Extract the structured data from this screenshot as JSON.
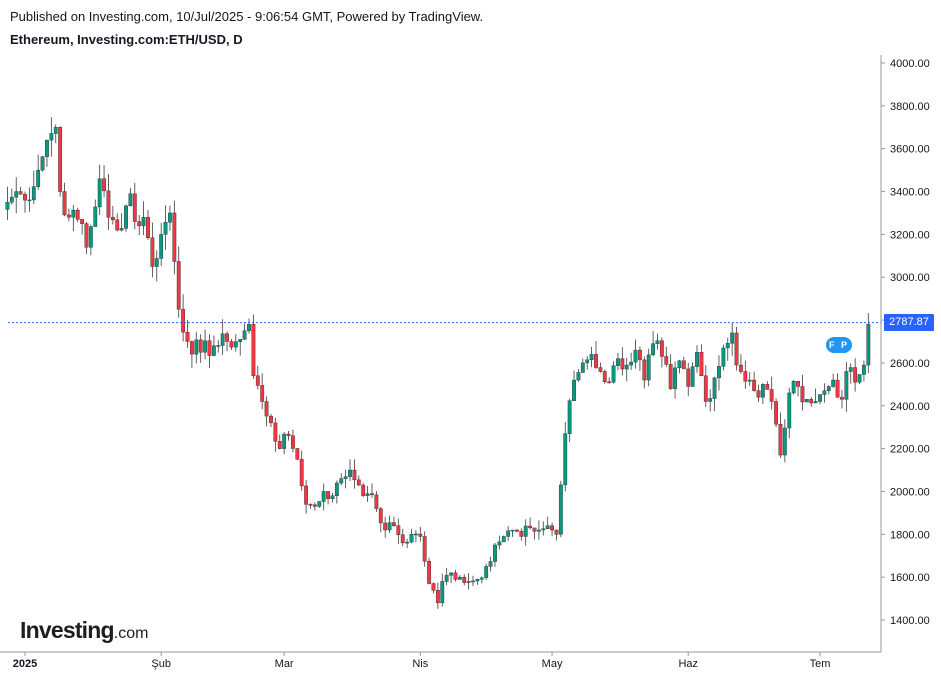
{
  "header": {
    "published": "Published on Investing.com, 10/Jul/2025 - 9:06:54 GMT, Powered by TradingView.",
    "symbol": "Ethereum, Investing.com:ETH/USD, D"
  },
  "logo": {
    "main": "Investing",
    "suffix": ".com"
  },
  "markers": {
    "text": "F P"
  },
  "colors": {
    "up": "#089981",
    "down": "#f23645",
    "wick": "#3a3a3a",
    "grid_line": "#2962ff",
    "price_tag": "#2962ff"
  },
  "chart_data": {
    "type": "candlestick",
    "title": "Ethereum, Investing.com:ETH/USD, D",
    "ylim": [
      1250,
      4050
    ],
    "y_ticks": [
      "4000.00",
      "3800.00",
      "3600.00",
      "3400.00",
      "3200.00",
      "3000.00",
      "2800.00",
      "2600.00",
      "2400.00",
      "2200.00",
      "2000.00",
      "1800.00",
      "1600.00",
      "1400.00"
    ],
    "x_tick_labels": [
      {
        "label": "2025",
        "day": 0
      },
      {
        "label": "Şub",
        "day": 31
      },
      {
        "label": "Mar",
        "day": 59
      },
      {
        "label": "Nis",
        "day": 90
      },
      {
        "label": "May",
        "day": 120
      },
      {
        "label": "Haz",
        "day": 151
      },
      {
        "label": "Tem",
        "day": 181
      }
    ],
    "last_price": 2787.87,
    "last_price_label": "2787.87",
    "anchors": [
      [
        -4,
        3350
      ],
      [
        -2,
        3400
      ],
      [
        0,
        3360
      ],
      [
        3,
        3500
      ],
      [
        5,
        3640
      ],
      [
        7,
        3700
      ],
      [
        8,
        3400
      ],
      [
        10,
        3280
      ],
      [
        13,
        3250
      ],
      [
        14,
        3140
      ],
      [
        17,
        3460
      ],
      [
        19,
        3280
      ],
      [
        21,
        3220
      ],
      [
        24,
        3390
      ],
      [
        25,
        3260
      ],
      [
        27,
        3280
      ],
      [
        29,
        3050
      ],
      [
        31,
        3200
      ],
      [
        33,
        3300
      ],
      [
        35,
        2850
      ],
      [
        37,
        2700
      ],
      [
        40,
        2650
      ],
      [
        43,
        2680
      ],
      [
        46,
        2700
      ],
      [
        49,
        2710
      ],
      [
        51,
        2780
      ],
      [
        52,
        2540
      ],
      [
        54,
        2420
      ],
      [
        56,
        2320
      ],
      [
        58,
        2200
      ],
      [
        60,
        2260
      ],
      [
        62,
        2150
      ],
      [
        64,
        1940
      ],
      [
        66,
        1930
      ],
      [
        68,
        2000
      ],
      [
        70,
        1980
      ],
      [
        72,
        2060
      ],
      [
        74,
        2100
      ],
      [
        76,
        2030
      ],
      [
        78,
        1990
      ],
      [
        80,
        1920
      ],
      [
        82,
        1820
      ],
      [
        84,
        1840
      ],
      [
        86,
        1760
      ],
      [
        88,
        1800
      ],
      [
        90,
        1790
      ],
      [
        92,
        1570
      ],
      [
        94,
        1480
      ],
      [
        95,
        1580
      ],
      [
        97,
        1620
      ],
      [
        99,
        1600
      ],
      [
        101,
        1580
      ],
      [
        103,
        1590
      ],
      [
        105,
        1650
      ],
      [
        107,
        1750
      ],
      [
        109,
        1790
      ],
      [
        111,
        1820
      ],
      [
        113,
        1790
      ],
      [
        115,
        1830
      ],
      [
        117,
        1820
      ],
      [
        119,
        1840
      ],
      [
        121,
        1800
      ],
      [
        123,
        2270
      ],
      [
        125,
        2520
      ],
      [
        127,
        2600
      ],
      [
        129,
        2640
      ],
      [
        131,
        2560
      ],
      [
        133,
        2510
      ],
      [
        135,
        2620
      ],
      [
        137,
        2590
      ],
      [
        139,
        2660
      ],
      [
        141,
        2520
      ],
      [
        143,
        2690
      ],
      [
        145,
        2630
      ],
      [
        147,
        2480
      ],
      [
        149,
        2610
      ],
      [
        151,
        2490
      ],
      [
        153,
        2650
      ],
      [
        155,
        2420
      ],
      [
        157,
        2530
      ],
      [
        159,
        2670
      ],
      [
        161,
        2740
      ],
      [
        162,
        2590
      ],
      [
        163,
        2560
      ],
      [
        165,
        2520
      ],
      [
        167,
        2440
      ],
      [
        168,
        2500
      ],
      [
        170,
        2420
      ],
      [
        172,
        2170
      ],
      [
        174,
        2460
      ],
      [
        176,
        2490
      ],
      [
        178,
        2430
      ],
      [
        180,
        2420
      ],
      [
        182,
        2470
      ],
      [
        184,
        2520
      ],
      [
        186,
        2430
      ],
      [
        187,
        2560
      ],
      [
        189,
        2510
      ],
      [
        191,
        2590
      ],
      [
        192,
        2780
      ]
    ]
  }
}
